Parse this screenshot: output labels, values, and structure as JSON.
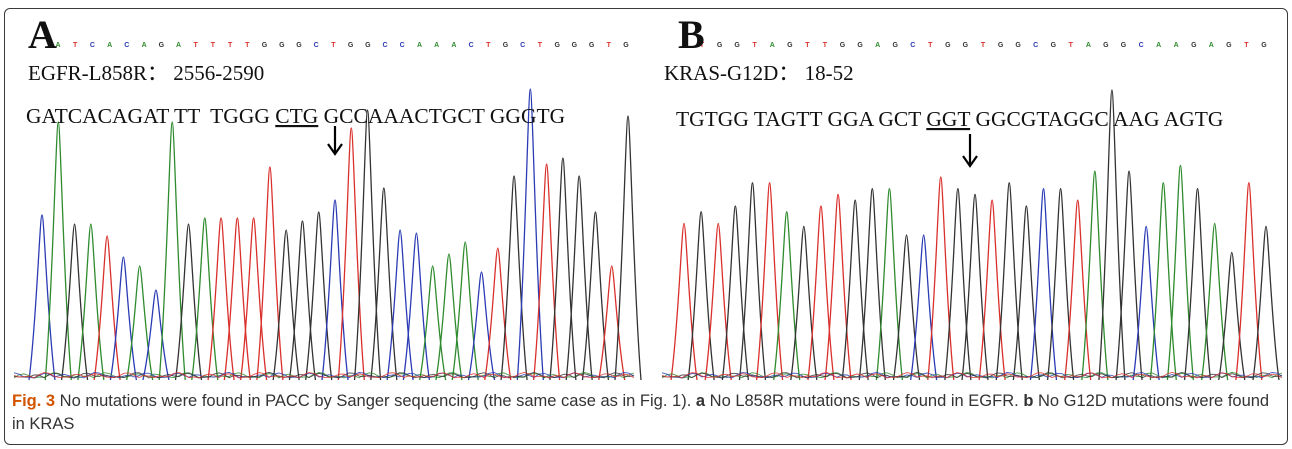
{
  "figure": {
    "label": "Fig. 3",
    "caption_text": " No mutations were found in PACC by Sanger sequencing (the same case as in Fig. 1). ",
    "sub_a_label": "a",
    "sub_a_text": " No L858R mutations were found in EGFR. ",
    "sub_b_label": "b",
    "sub_b_text": " No G12D mutations were found in KRAS"
  },
  "colors": {
    "A": "#2e8b2e",
    "C": "#2a3bb4",
    "G": "#333333",
    "T": "#d9302c",
    "frame": "#3a3a3a",
    "fig_label": "#d35400"
  },
  "panels": [
    {
      "id": "A",
      "panel_letter": "A",
      "base_calls": "ATCACAGATTTTGGGCTGGCCAAACTGCTGGGTG",
      "title": "EGFR-L858R： 2556-2590",
      "sequence_pre": "GATCACAGAT TT  TGGG ",
      "codon": "CTG",
      "sequence_post": " GCCAAACTGCT GGGTG",
      "peaks": {
        "order": "CAGATCACAGATTTTGGGCTGGCCAAACTGCTGGGTG",
        "heights": [
          0.55,
          0.86,
          0.52,
          0.52,
          0.48,
          0.41,
          0.38,
          0.3,
          0.86,
          0.52,
          0.54,
          0.54,
          0.54,
          0.54,
          0.71,
          0.5,
          0.53,
          0.56,
          0.6,
          0.84,
          0.9,
          0.64,
          0.5,
          0.49,
          0.38,
          0.42,
          0.46,
          0.36,
          0.44,
          0.68,
          0.97,
          0.72,
          0.74,
          0.68,
          0.56,
          0.38,
          0.88
        ]
      }
    },
    {
      "id": "B",
      "panel_letter": "B",
      "base_calls": "TGGTAGTTGGAGCTGGTGGCGTAGGCAAGAGTG",
      "title": "KRAS-G12D： 18-52",
      "sequence_pre": "TGTGG TAGTT GGA GCT ",
      "codon": "GGT",
      "sequence_post": " GGCGTAGGC AAG AGTG",
      "peaks": {
        "order": "TGTGGTAGTTGGAGCTGGTGGCGTAGGCAAGAGTG",
        "heights": [
          0.54,
          0.58,
          0.54,
          0.6,
          0.68,
          0.68,
          0.58,
          0.53,
          0.6,
          0.64,
          0.62,
          0.66,
          0.66,
          0.5,
          0.5,
          0.7,
          0.66,
          0.64,
          0.62,
          0.68,
          0.6,
          0.66,
          0.66,
          0.62,
          0.72,
          1.0,
          0.72,
          0.53,
          0.68,
          0.74,
          0.66,
          0.54,
          0.44,
          0.68,
          0.53
        ]
      }
    }
  ]
}
